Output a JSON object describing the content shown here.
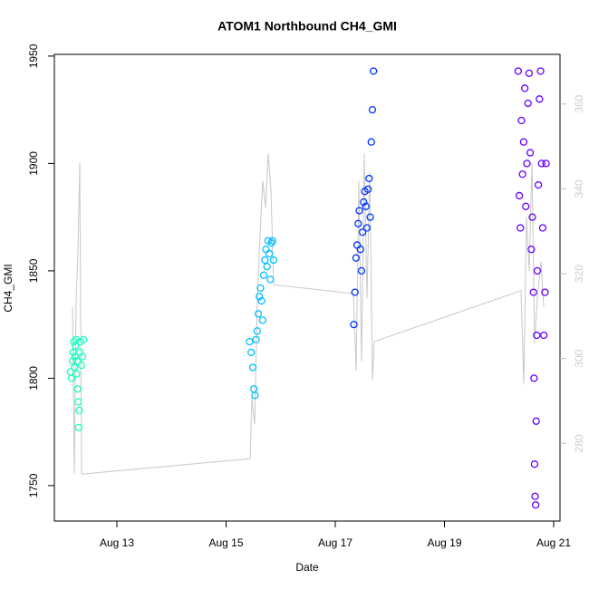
{
  "chart_data": {
    "type": "scatter",
    "title": "ATOM1 Northbound CH4_GMI",
    "x_label": "Date",
    "y_label": "CH4_GMI",
    "xlim": [
      11.855,
      21.116
    ],
    "ylim": [
      1733.5,
      1950.8
    ],
    "y2lim": [
      261.7,
      371.7
    ],
    "xticks": [
      {
        "value": 13,
        "label": "Aug 13"
      },
      {
        "value": 15,
        "label": "Aug 15"
      },
      {
        "value": 17,
        "label": "Aug 17"
      },
      {
        "value": 19,
        "label": "Aug 19"
      },
      {
        "value": 21,
        "label": "Aug 21"
      }
    ],
    "yticks": [
      1750,
      1800,
      1850,
      1900,
      1950
    ],
    "y2ticks": [
      280,
      300,
      320,
      340,
      360
    ],
    "series": [
      {
        "color": "#c8c8c8",
        "axis": "y2",
        "mode": "line",
        "x": [
          12.187,
          12.22,
          12.253,
          12.286,
          12.32,
          12.353,
          12.4,
          15.44,
          15.473,
          15.523,
          15.573,
          15.622,
          15.672,
          15.722,
          15.772,
          15.822,
          15.871,
          17.332,
          17.382,
          17.432,
          17.481,
          17.531,
          17.581,
          17.631,
          17.681,
          17.714,
          20.402,
          20.452,
          20.502,
          20.552,
          20.602,
          20.652,
          20.701,
          20.768,
          20.818
        ],
        "values": [
          312.1,
          272.8,
          313.2,
          324.9,
          346.2,
          272.8,
          272.8,
          276.4,
          290.9,
          284.5,
          314.3,
          329.1,
          341.9,
          335.5,
          348.3,
          339.8,
          317.4,
          315.3,
          297.2,
          341.9,
          299.4,
          348.3,
          314.3,
          344.0,
          295.1,
          304.0,
          316.0,
          294.0,
          333.4,
          320.6,
          346.2,
          303.6,
          314.3,
          322.8,
          312.1
        ]
      },
      {
        "color": "#1affc0",
        "mode": "points",
        "x": [
          12.15,
          12.17,
          12.19,
          12.2,
          12.21,
          12.22,
          12.23,
          12.24,
          12.25,
          12.26,
          12.27,
          12.28,
          12.29,
          12.3,
          12.31,
          12.32,
          12.33,
          12.35,
          12.37,
          12.39
        ],
        "values": [
          1803,
          1800,
          1808,
          1812,
          1817,
          1805,
          1810,
          1815,
          1818,
          1802,
          1808,
          1795,
          1789,
          1777,
          1785,
          1812,
          1817,
          1806,
          1810,
          1818
        ]
      },
      {
        "color": "#00bfff",
        "mode": "points",
        "x": [
          15.43,
          15.46,
          15.49,
          15.51,
          15.53,
          15.55,
          15.57,
          15.59,
          15.61,
          15.63,
          15.65,
          15.67,
          15.69,
          15.71,
          15.73,
          15.75,
          15.77,
          15.79,
          15.81,
          15.83,
          15.85,
          15.87
        ],
        "values": [
          1817,
          1812,
          1805,
          1795,
          1792,
          1818,
          1822,
          1830,
          1838,
          1842,
          1836,
          1827,
          1848,
          1855,
          1860,
          1852,
          1864,
          1858,
          1846,
          1863,
          1864,
          1855
        ]
      },
      {
        "color": "#0033ff",
        "mode": "points",
        "x": [
          17.34,
          17.36,
          17.38,
          17.4,
          17.42,
          17.44,
          17.46,
          17.48,
          17.5,
          17.52,
          17.54,
          17.56,
          17.58,
          17.6,
          17.62,
          17.64,
          17.66,
          17.68,
          17.7
        ],
        "values": [
          1825,
          1840,
          1856,
          1862,
          1872,
          1878,
          1860,
          1850,
          1868,
          1882,
          1887,
          1880,
          1870,
          1888,
          1893,
          1875,
          1910,
          1925,
          1943
        ]
      },
      {
        "color": "#6600ff",
        "mode": "points",
        "x": [
          20.35,
          20.37,
          20.39,
          20.41,
          20.43,
          20.45,
          20.47,
          20.49,
          20.51,
          20.53,
          20.55,
          20.57,
          20.59,
          20.61,
          20.63,
          20.64,
          20.65,
          20.66,
          20.67,
          20.68,
          20.69,
          20.7,
          20.72,
          20.74,
          20.76,
          20.78,
          20.8,
          20.82,
          20.84,
          20.86
        ],
        "values": [
          1943,
          1885,
          1870,
          1920,
          1895,
          1910,
          1935,
          1880,
          1900,
          1928,
          1942,
          1905,
          1860,
          1875,
          1840,
          1800,
          1760,
          1745,
          1741,
          1780,
          1820,
          1850,
          1890,
          1930,
          1943,
          1900,
          1870,
          1820,
          1840,
          1900
        ]
      }
    ]
  }
}
